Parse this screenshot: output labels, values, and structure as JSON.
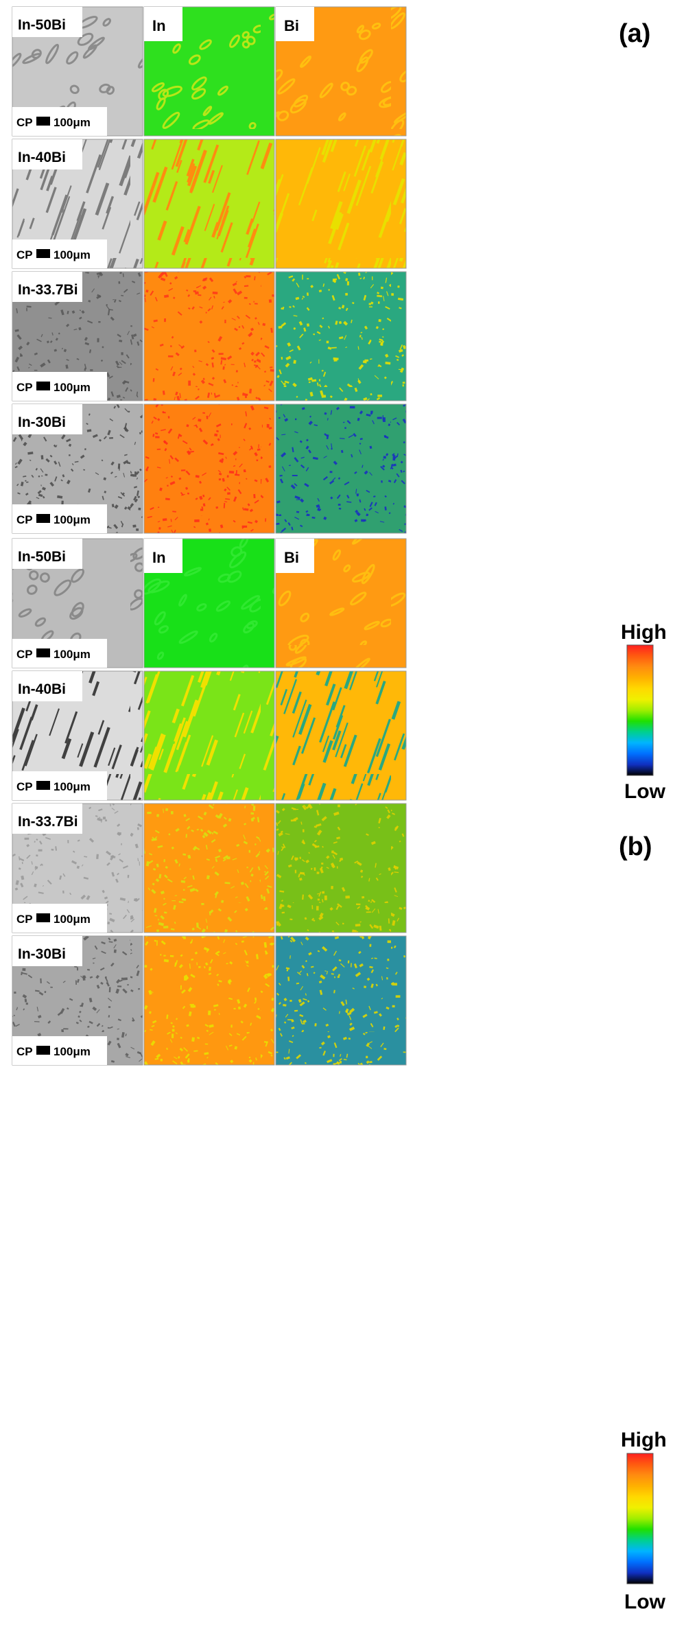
{
  "column_labels": [
    "In",
    "Bi"
  ],
  "colorbar": {
    "high_label": "High",
    "low_label": "Low",
    "stops": [
      "#ff2020",
      "#ff5a10",
      "#ff8c10",
      "#ffb000",
      "#ffd800",
      "#f0f000",
      "#a0ee00",
      "#20e000",
      "#00d090",
      "#00b4ff",
      "#0070ff",
      "#1030c0",
      "#000000"
    ]
  },
  "panels": [
    {
      "label": "(a)",
      "scale_bar": {
        "prefix": "CP",
        "length": "100μm"
      },
      "rows": [
        {
          "alloy": "In-50Bi",
          "sem_tone": "#c8c8c8",
          "sem_dendrite": "#8c8c8c",
          "in_base": "#2ee01e",
          "in_feature": "#b8e618",
          "bi_base": "#ff9a12",
          "bi_feature": "#ffc010",
          "texture": "coarse"
        },
        {
          "alloy": "In-40Bi",
          "sem_tone": "#d8d8d8",
          "sem_dendrite": "#7c7c7c",
          "in_base": "#b4ea18",
          "in_feature": "#ff8c10",
          "bi_base": "#ffb808",
          "bi_feature": "#e8e000",
          "texture": "lamellar"
        },
        {
          "alloy": "In-33.7Bi",
          "sem_tone": "#909090",
          "sem_dendrite": "#5a5a5a",
          "in_base": "#ff8a10",
          "in_feature": "#ff3a18",
          "bi_base": "#2aa880",
          "bi_feature": "#e6e000",
          "texture": "fine"
        },
        {
          "alloy": "In-30Bi",
          "sem_tone": "#b0b0b0",
          "sem_dendrite": "#505050",
          "in_base": "#ff8010",
          "in_feature": "#ff3018",
          "bi_base": "#30a070",
          "bi_feature": "#1830c0",
          "texture": "fine"
        }
      ]
    },
    {
      "label": "(b)",
      "scale_bar": {
        "prefix": "CP",
        "length": "100μm"
      },
      "rows": [
        {
          "alloy": "In-50Bi",
          "sem_tone": "#bcbcbc",
          "sem_dendrite": "#8a8a8a",
          "in_base": "#18e018",
          "in_feature": "#30e830",
          "bi_base": "#ff9a12",
          "bi_feature": "#ffbe10",
          "texture": "coarse"
        },
        {
          "alloy": "In-40Bi",
          "sem_tone": "#dcdcdc",
          "sem_dendrite": "#404040",
          "in_base": "#7ae418",
          "in_feature": "#f0e000",
          "bi_base": "#ffb808",
          "bi_feature": "#2aa880",
          "texture": "lamellar"
        },
        {
          "alloy": "In-33.7Bi",
          "sem_tone": "#c8c8c8",
          "sem_dendrite": "#9a9a9a",
          "in_base": "#ff9a10",
          "in_feature": "#d8e010",
          "bi_base": "#78c018",
          "bi_feature": "#e0d000",
          "texture": "fine"
        },
        {
          "alloy": "In-30Bi",
          "sem_tone": "#a8a8a8",
          "sem_dendrite": "#606060",
          "in_base": "#ff9810",
          "in_feature": "#e8e000",
          "bi_base": "#2a90a0",
          "bi_feature": "#e0d800",
          "texture": "fine"
        }
      ]
    }
  ]
}
